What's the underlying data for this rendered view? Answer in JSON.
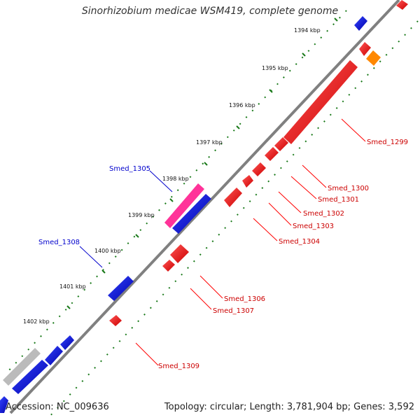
{
  "title": "Sinorhizobium medicae WSM419, complete genome",
  "footer": {
    "accession": "Accession: NC_009636",
    "summary": "Topology: circular; Length: 3,781,904 bp; Genes: 3,592"
  },
  "scale": [
    {
      "label": "1394 kbp"
    },
    {
      "label": "1395 kbp"
    },
    {
      "label": "1396 kbp"
    },
    {
      "label": "1397 kbp"
    },
    {
      "label": "1398 kbp"
    },
    {
      "label": "1399 kbp"
    },
    {
      "label": "1400 kbp"
    },
    {
      "label": "1401 kbp"
    },
    {
      "label": "1402 kbp"
    }
  ],
  "genes": [
    {
      "name": "Smed_1299",
      "color": "#ff0000"
    },
    {
      "name": "Smed_1300",
      "color": "#ff0000"
    },
    {
      "name": "Smed_1301",
      "color": "#ff0000"
    },
    {
      "name": "Smed_1302",
      "color": "#ff0000"
    },
    {
      "name": "Smed_1303",
      "color": "#ff0000"
    },
    {
      "name": "Smed_1304",
      "color": "#ff0000"
    },
    {
      "name": "Smed_1305",
      "color": "#0000cc"
    },
    {
      "name": "Smed_1306",
      "color": "#ff0000"
    },
    {
      "name": "Smed_1307",
      "color": "#ff0000"
    },
    {
      "name": "Smed_1308",
      "color": "#0000cc"
    },
    {
      "name": "Smed_1309",
      "color": "#ff0000"
    }
  ],
  "colors": {
    "reverse_strand": "#ff0000",
    "forward_strand": "#0000ff",
    "rna": "#ff3399",
    "other": "#ff8800",
    "gap": "#bbbbbb",
    "backbone": "#808080",
    "ticks": "#1a7a1a"
  }
}
